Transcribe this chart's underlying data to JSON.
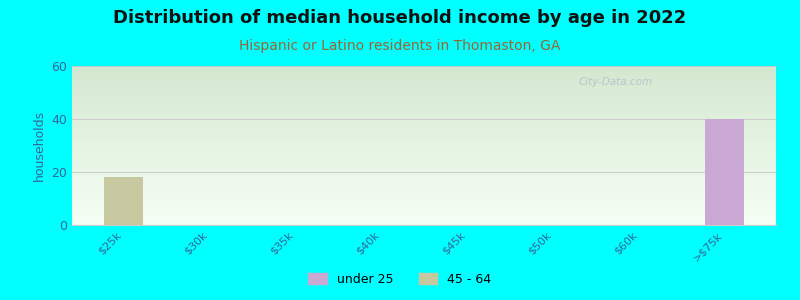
{
  "title": "Distribution of median household income by age in 2022",
  "subtitle": "Hispanic or Latino residents in Thomaston, GA",
  "ylabel": "households",
  "background_color": "#00FFFF",
  "plot_bg_top": "#d4e8d0",
  "plot_bg_bottom": "#f5fff5",
  "ylim": [
    0,
    60
  ],
  "yticks": [
    0,
    20,
    40,
    60
  ],
  "categories": [
    "$25k",
    "$30k",
    "$35k",
    "$40k",
    "$45k",
    "$50k",
    "$60k",
    ">$75k"
  ],
  "series": {
    "under 25": {
      "color": "#c9a8d4",
      "values": [
        0,
        0,
        0,
        0,
        0,
        0,
        0,
        40
      ]
    },
    "45 - 64": {
      "color": "#c8c8a0",
      "values": [
        18,
        0,
        0,
        0,
        0,
        0,
        0,
        0
      ]
    }
  },
  "title_fontsize": 13,
  "subtitle_fontsize": 10,
  "subtitle_color": "#996633",
  "title_color": "#111111",
  "bar_width": 0.45,
  "watermark": "City-Data.com",
  "grid_color": "#cccccc",
  "tick_label_color": "#336699",
  "ylabel_color": "#336699",
  "legend_marker_color_under25": "#c9a8d4",
  "legend_marker_color_4564": "#c8c8a0"
}
